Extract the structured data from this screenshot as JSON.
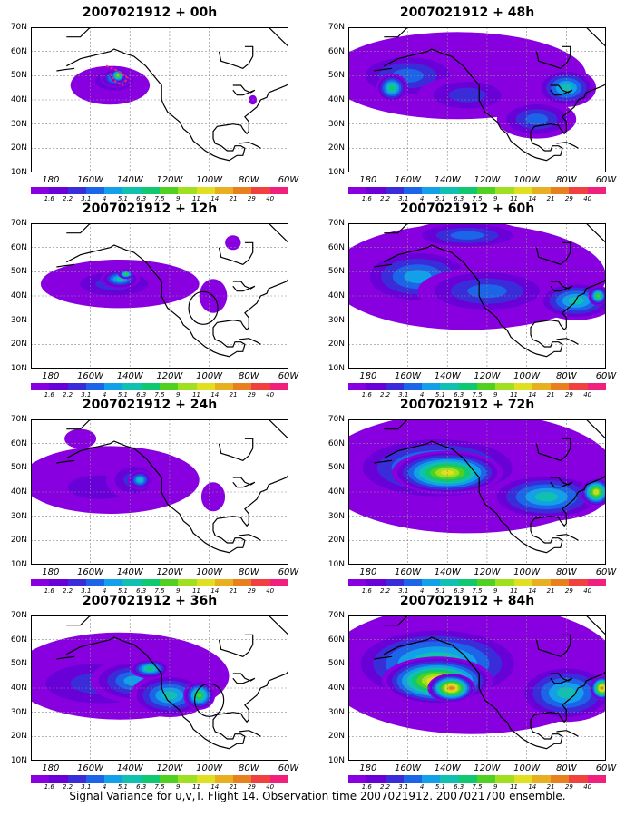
{
  "caption": "Signal Variance for u,v,T. Flight 14. Observation time 2007021912. 2007021700 ensemble.",
  "axis": {
    "lat_labels": [
      "70N",
      "60N",
      "50N",
      "40N",
      "30N",
      "20N",
      "10N"
    ],
    "lon_labels": [
      "180",
      "160W",
      "140W",
      "120W",
      "100W",
      "80W",
      "60W"
    ]
  },
  "colorbar": {
    "labels": [
      "1.6",
      "2.2",
      "3.1",
      "4",
      "5.1",
      "6.3",
      "7.5",
      "9",
      "11",
      "14",
      "21",
      "29",
      "40"
    ],
    "colors": [
      "#8800e0",
      "#6a00d8",
      "#3a2cd8",
      "#1c64e8",
      "#12a0e8",
      "#10c0b0",
      "#10c870",
      "#50d020",
      "#a0e020",
      "#e0e020",
      "#e8b020",
      "#e88020",
      "#f04040",
      "#f0207c"
    ]
  },
  "panels": [
    {
      "id": "p00",
      "title": "2007021912 + 00h",
      "lead": 0,
      "col": 0,
      "row": 0
    },
    {
      "id": "p12",
      "title": "2007021912 + 12h",
      "lead": 12,
      "col": 0,
      "row": 1
    },
    {
      "id": "p24",
      "title": "2007021912 + 24h",
      "lead": 24,
      "col": 0,
      "row": 2
    },
    {
      "id": "p36",
      "title": "2007021912 + 36h",
      "lead": 36,
      "col": 0,
      "row": 3
    },
    {
      "id": "p48",
      "title": "2007021912 + 48h",
      "lead": 48,
      "col": 1,
      "row": 0
    },
    {
      "id": "p60",
      "title": "2007021912 + 60h",
      "lead": 60,
      "col": 1,
      "row": 1
    },
    {
      "id": "p72",
      "title": "2007021912 + 72h",
      "lead": 72,
      "col": 1,
      "row": 2
    },
    {
      "id": "p84",
      "title": "2007021912 + 84h",
      "lead": 84,
      "col": 1,
      "row": 3
    }
  ]
}
